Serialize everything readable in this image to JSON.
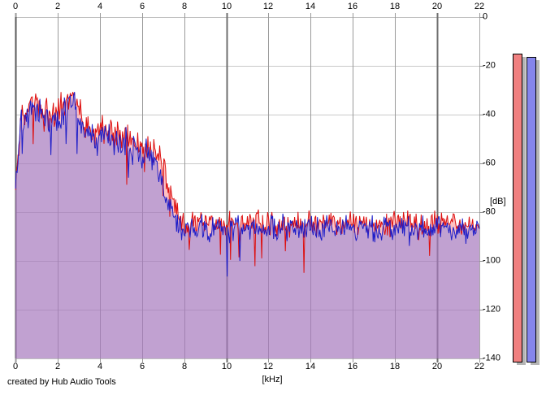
{
  "watermark": "created by Hub Audio Tools",
  "axes": {
    "x_unit_label": "[kHz]",
    "y_unit_label": "[dB]",
    "x_ticks": [
      0,
      2,
      4,
      6,
      8,
      10,
      12,
      14,
      16,
      18,
      20,
      22
    ],
    "y_ticks": [
      0,
      -20,
      -40,
      -60,
      -80,
      -100,
      -120,
      -140
    ]
  },
  "chart_data": {
    "type": "area",
    "title": "",
    "xlabel": "[kHz]",
    "ylabel": "[dB]",
    "x_range_khz": [
      0,
      22
    ],
    "y_range_db": [
      -140,
      0
    ],
    "grid": true,
    "x_major_lines_khz": [
      10,
      20
    ],
    "x_start_khz": 0,
    "x_step_khz": 0.25,
    "series": [
      {
        "name": "channel-1-spectrum",
        "line_color": "#dd0f0f",
        "fill_color": "rgba(255,110,110,0.42)",
        "noise_seed": 11,
        "noise_bias_db": 0.8,
        "plateau_bias_db": 1.2,
        "db": [
          -72,
          -43,
          -40,
          -36,
          -36,
          -38,
          -41,
          -39,
          -41,
          -37,
          -34,
          -33,
          -37,
          -43,
          -46,
          -48,
          -47,
          -46,
          -46,
          -49,
          -50,
          -47,
          -51,
          -53,
          -55,
          -53,
          -56,
          -58,
          -62,
          -70,
          -77,
          -82,
          -85,
          -87,
          -85,
          -86,
          -87,
          -85,
          -86,
          -85,
          -87,
          -85,
          -86,
          -87,
          -85,
          -86,
          -85,
          -87,
          -85,
          -86,
          -87,
          -85,
          -86,
          -85,
          -87,
          -85,
          -86,
          -87,
          -85,
          -86,
          -85,
          -87,
          -85,
          -86,
          -87,
          -85,
          -86,
          -85,
          -87,
          -85,
          -86,
          -87,
          -85,
          -86,
          -85,
          -87,
          -85,
          -86,
          -87,
          -85,
          -86,
          -85,
          -87,
          -85,
          -86,
          -87,
          -85,
          -86,
          -85
        ]
      },
      {
        "name": "channel-2-spectrum",
        "line_color": "#1d1dc8",
        "fill_color": "rgba(125,125,225,0.48)",
        "noise_seed": 47,
        "noise_bias_db": -0.3,
        "plateau_bias_db": -0.8,
        "db": [
          -68,
          -44,
          -41,
          -37,
          -36,
          -39,
          -42,
          -40,
          -42,
          -39,
          -36,
          -35,
          -39,
          -45,
          -48,
          -50,
          -49,
          -48,
          -48,
          -51,
          -52,
          -49,
          -53,
          -55,
          -57,
          -55,
          -58,
          -61,
          -67,
          -75,
          -81,
          -85,
          -87,
          -86,
          -87,
          -85,
          -86,
          -87,
          -85,
          -86,
          -86,
          -87,
          -85,
          -86,
          -87,
          -85,
          -86,
          -86,
          -87,
          -85,
          -86,
          -87,
          -85,
          -86,
          -86,
          -87,
          -85,
          -86,
          -87,
          -85,
          -86,
          -86,
          -87,
          -85,
          -86,
          -87,
          -85,
          -86,
          -86,
          -87,
          -85,
          -86,
          -87,
          -85,
          -86,
          -86,
          -87,
          -85,
          -86,
          -87,
          -85,
          -86,
          -86,
          -87,
          -85,
          -86,
          -87,
          -85,
          -86
        ]
      }
    ],
    "colors": {
      "grid_minor_vertical": "#9a9a9a",
      "grid_major_vertical": "#6f6f6f",
      "axis_left": "#5a5a5a",
      "grid_horizontal": "#c9c9c9",
      "border_top_bottom": "#c0c0c0",
      "border_right": "#a8a8a8"
    }
  },
  "meters": [
    {
      "name": "channel-1-peak-meter",
      "peak_db": -15.0,
      "fill": "#f08080",
      "border": "#000000",
      "shadow": "#b5b5b5"
    },
    {
      "name": "channel-2-peak-meter",
      "peak_db": -16.3,
      "fill": "#8585ec",
      "border": "#000000",
      "shadow": "#b5b5b5"
    }
  ]
}
